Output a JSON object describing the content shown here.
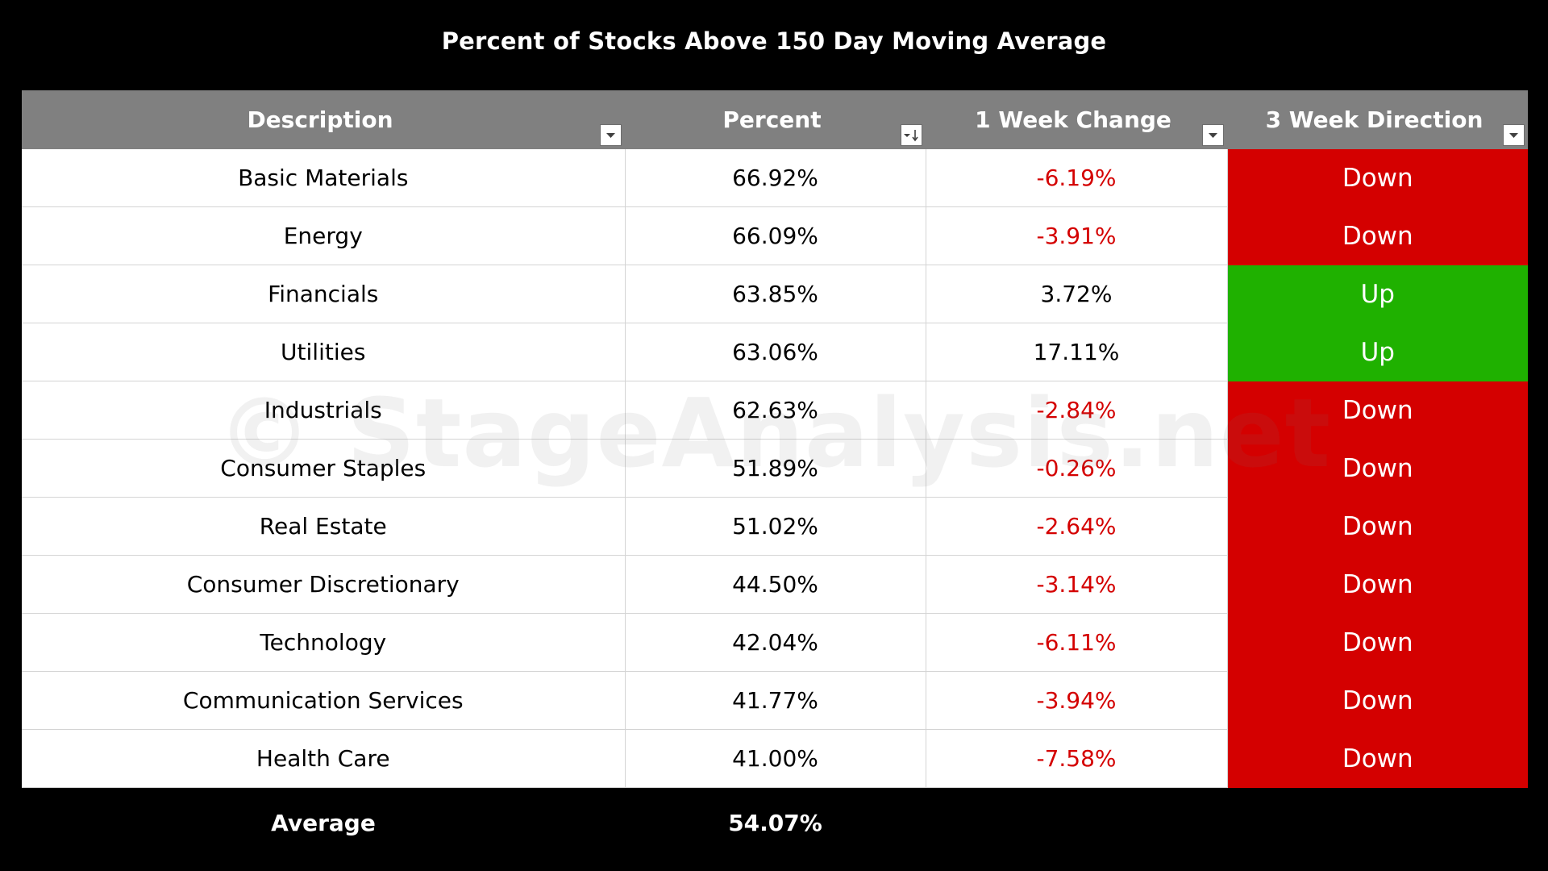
{
  "chart_data": {
    "type": "table",
    "title": "Percent of Stocks Above 150 Day Moving Average",
    "columns": [
      "Description",
      "Percent",
      "1 Week Change",
      "3 Week Direction"
    ],
    "rows": [
      {
        "description": "Basic Materials",
        "percent": "66.92%",
        "change": "-6.19%",
        "direction": "Down"
      },
      {
        "description": "Energy",
        "percent": "66.09%",
        "change": "-3.91%",
        "direction": "Down"
      },
      {
        "description": "Financials",
        "percent": "63.85%",
        "change": "3.72%",
        "direction": "Up"
      },
      {
        "description": "Utilities",
        "percent": "63.06%",
        "change": "17.11%",
        "direction": "Up"
      },
      {
        "description": "Industrials",
        "percent": "62.63%",
        "change": "-2.84%",
        "direction": "Down"
      },
      {
        "description": "Consumer Staples",
        "percent": "51.89%",
        "change": "-0.26%",
        "direction": "Down"
      },
      {
        "description": "Real Estate",
        "percent": "51.02%",
        "change": "-2.64%",
        "direction": "Down"
      },
      {
        "description": "Consumer Discretionary",
        "percent": "44.50%",
        "change": "-3.14%",
        "direction": "Down"
      },
      {
        "description": "Technology",
        "percent": "42.04%",
        "change": "-6.11%",
        "direction": "Down"
      },
      {
        "description": "Communication Services",
        "percent": "41.77%",
        "change": "-3.94%",
        "direction": "Down"
      },
      {
        "description": "Health Care",
        "percent": "41.00%",
        "change": "-7.58%",
        "direction": "Down"
      }
    ],
    "average": {
      "label": "Average",
      "value": "54.07%"
    },
    "watermark": "© StageAnalysis.net"
  },
  "colors": {
    "background": "#000000",
    "header": "#808080",
    "down": "#d40000",
    "up": "#1fb100",
    "negative_text": "#d40000"
  }
}
